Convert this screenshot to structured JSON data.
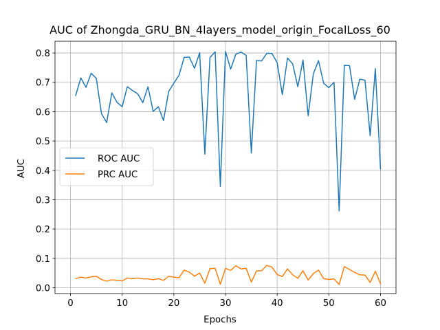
{
  "chart_data": {
    "type": "line",
    "title": "AUC of Zhongda_GRU_BN_4layers_model_origin_FocalLoss_60",
    "xlabel": "Epochs",
    "ylabel": "AUC",
    "xlim": [
      -3,
      63
    ],
    "ylim": [
      -0.02,
      0.84
    ],
    "xticks": [
      0,
      10,
      20,
      30,
      40,
      50,
      60
    ],
    "yticks": [
      0.0,
      0.1,
      0.2,
      0.3,
      0.4,
      0.5,
      0.6,
      0.7,
      0.8
    ],
    "xtick_labels": [
      "0",
      "10",
      "20",
      "30",
      "40",
      "50",
      "60"
    ],
    "ytick_labels": [
      "0.0",
      "0.1",
      "0.2",
      "0.3",
      "0.4",
      "0.5",
      "0.6",
      "0.7",
      "0.8"
    ],
    "grid": true,
    "legend_position": "center-left",
    "x": [
      1,
      2,
      3,
      4,
      5,
      6,
      7,
      8,
      9,
      10,
      11,
      12,
      13,
      14,
      15,
      16,
      17,
      18,
      19,
      20,
      21,
      22,
      23,
      24,
      25,
      26,
      27,
      28,
      29,
      30,
      31,
      32,
      33,
      34,
      35,
      36,
      37,
      38,
      39,
      40,
      41,
      42,
      43,
      44,
      45,
      46,
      47,
      48,
      49,
      50,
      51,
      52,
      53,
      54,
      55,
      56,
      57,
      58,
      59,
      60
    ],
    "series": [
      {
        "name": "ROC AUC",
        "color": "#1f77b4",
        "values": [
          0.655,
          0.715,
          0.683,
          0.731,
          0.713,
          0.593,
          0.563,
          0.664,
          0.632,
          0.617,
          0.685,
          0.672,
          0.661,
          0.631,
          0.685,
          0.601,
          0.617,
          0.57,
          0.669,
          0.697,
          0.724,
          0.785,
          0.786,
          0.748,
          0.801,
          0.455,
          0.785,
          0.804,
          0.345,
          0.805,
          0.745,
          0.796,
          0.803,
          0.792,
          0.459,
          0.774,
          0.773,
          0.799,
          0.798,
          0.767,
          0.658,
          0.783,
          0.763,
          0.685,
          0.776,
          0.586,
          0.729,
          0.774,
          0.697,
          0.682,
          0.7,
          0.262,
          0.758,
          0.757,
          0.642,
          0.711,
          0.707,
          0.518,
          0.747,
          0.405
        ]
      },
      {
        "name": "PRC AUC",
        "color": "#ff7f0e",
        "values": [
          0.031,
          0.036,
          0.033,
          0.037,
          0.039,
          0.028,
          0.022,
          0.027,
          0.025,
          0.023,
          0.033,
          0.031,
          0.033,
          0.03,
          0.03,
          0.027,
          0.031,
          0.025,
          0.039,
          0.036,
          0.034,
          0.06,
          0.053,
          0.039,
          0.05,
          0.015,
          0.065,
          0.066,
          0.012,
          0.066,
          0.059,
          0.075,
          0.064,
          0.066,
          0.019,
          0.057,
          0.058,
          0.076,
          0.07,
          0.045,
          0.038,
          0.064,
          0.044,
          0.032,
          0.058,
          0.026,
          0.048,
          0.06,
          0.031,
          0.028,
          0.03,
          0.011,
          0.072,
          0.062,
          0.052,
          0.044,
          0.043,
          0.018,
          0.056,
          0.014
        ]
      }
    ]
  }
}
